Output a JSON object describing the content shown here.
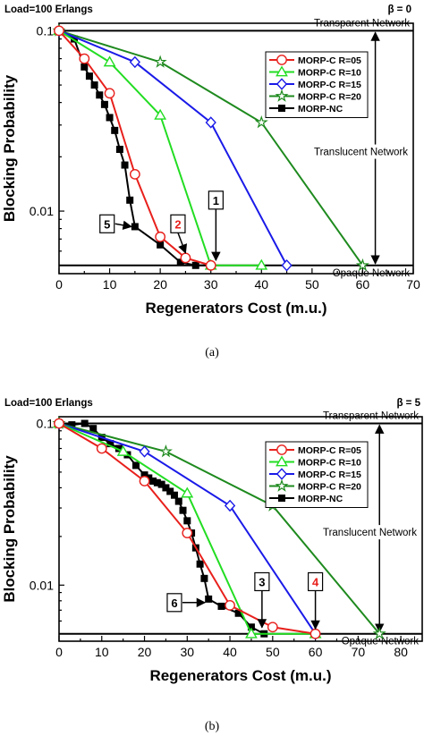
{
  "chart_data": [
    {
      "type": "line",
      "corner_left": "Load=100 Erlangs",
      "corner_right": "β = 0",
      "xlabel": "Regenerators Cost (m.u.)",
      "ylabel": "Blocking Probability",
      "xlim": [
        0,
        70
      ],
      "ylim": [
        0.0045,
        0.11
      ],
      "yscale": "log",
      "xticks": [
        0,
        10,
        20,
        30,
        40,
        50,
        60,
        70
      ],
      "xtick_labels": [
        "0",
        "10",
        "20",
        "30",
        "40",
        "50",
        "60",
        "70"
      ],
      "yticks": [
        0.01,
        0.1
      ],
      "ytick_labels": [
        "0.01",
        "0.1"
      ],
      "legend_position": "upper-right",
      "reference_lines": [
        {
          "y": 0.1,
          "label": "Transparent Network"
        },
        {
          "y": 0.005,
          "label": "Opaque Network"
        }
      ],
      "region_label": "Translucent Network",
      "region_arrow_x": 62.5,
      "series": [
        {
          "name": "MORP-C R=05",
          "color": "#e8201c",
          "marker": "circle",
          "x": [
            0,
            5,
            10,
            15,
            20,
            25,
            30
          ],
          "y": [
            0.1,
            0.07,
            0.045,
            0.016,
            0.0072,
            0.0055,
            0.005
          ]
        },
        {
          "name": "MORP-C R=10",
          "color": "#22dd22",
          "marker": "triangle",
          "x": [
            0,
            10,
            20,
            30,
            40
          ],
          "y": [
            0.1,
            0.067,
            0.034,
            0.005,
            0.005
          ]
        },
        {
          "name": "MORP-C R=15",
          "color": "#1a1ae8",
          "marker": "diamond",
          "x": [
            0,
            15,
            30,
            45
          ],
          "y": [
            0.1,
            0.067,
            0.031,
            0.005
          ]
        },
        {
          "name": "MORP-C R=20",
          "color": "#1e8a1e",
          "marker": "star",
          "x": [
            0,
            20,
            40,
            60
          ],
          "y": [
            0.1,
            0.067,
            0.031,
            0.005
          ]
        },
        {
          "name": "MORP-NC",
          "color": "#000000",
          "marker": "square",
          "x": [
            0,
            3,
            5,
            6,
            7,
            8,
            9,
            10,
            11,
            12,
            13,
            14,
            15,
            20,
            24,
            27,
            30
          ],
          "y": [
            0.1,
            0.09,
            0.063,
            0.056,
            0.05,
            0.044,
            0.039,
            0.033,
            0.028,
            0.022,
            0.018,
            0.0115,
            0.0082,
            0.0065,
            0.0052,
            0.005,
            0.005
          ]
        }
      ],
      "callouts": [
        {
          "label": "5",
          "color": "#000000",
          "box_at": [
            9.5,
            0.0085
          ],
          "points_to": [
            15,
            0.0082
          ]
        },
        {
          "label": "2",
          "color": "#e8201c",
          "box_at": [
            23.5,
            0.0085
          ],
          "points_to": [
            25,
            0.0056
          ]
        },
        {
          "label": "1",
          "color": "#000000",
          "box_at": [
            31,
            0.0115
          ],
          "points_to": [
            31,
            0.0051
          ]
        }
      ]
    },
    {
      "type": "line",
      "corner_left": "Load=100 Erlangs",
      "corner_right": "β = 5",
      "xlabel": "Regenerators Cost (m.u.)",
      "ylabel": "Blocking Probability",
      "xlim": [
        0,
        85
      ],
      "ylim": [
        0.0045,
        0.11
      ],
      "yscale": "log",
      "xticks": [
        0,
        10,
        20,
        30,
        40,
        50,
        60,
        70,
        80
      ],
      "xtick_labels": [
        "0",
        "10",
        "20",
        "30",
        "40",
        "50",
        "60",
        "70",
        "80"
      ],
      "yticks": [
        0.01,
        0.1
      ],
      "ytick_labels": [
        "0.01",
        "0.1"
      ],
      "legend_position": "upper-right",
      "reference_lines": [
        {
          "y": 0.1,
          "label": "Transparent Network"
        },
        {
          "y": 0.005,
          "label": "Opaque Network"
        }
      ],
      "region_label": "Translucent Network",
      "region_arrow_x": 75,
      "series": [
        {
          "name": "MORP-C R=05",
          "color": "#e8201c",
          "marker": "circle",
          "x": [
            0,
            10,
            20,
            30,
            40,
            50,
            60
          ],
          "y": [
            0.1,
            0.07,
            0.044,
            0.021,
            0.0075,
            0.0055,
            0.005
          ]
        },
        {
          "name": "MORP-C R=10",
          "color": "#22dd22",
          "marker": "triangle",
          "x": [
            0,
            15,
            30,
            45,
            60
          ],
          "y": [
            0.1,
            0.067,
            0.037,
            0.005,
            0.005
          ]
        },
        {
          "name": "MORP-C R=15",
          "color": "#1a1ae8",
          "marker": "diamond",
          "x": [
            0,
            20,
            40,
            60
          ],
          "y": [
            0.1,
            0.067,
            0.031,
            0.005
          ]
        },
        {
          "name": "MORP-C R=20",
          "color": "#1e8a1e",
          "marker": "star",
          "x": [
            0,
            25,
            50,
            75
          ],
          "y": [
            0.1,
            0.067,
            0.031,
            0.005
          ]
        },
        {
          "name": "MORP-NC",
          "color": "#000000",
          "marker": "square",
          "x": [
            0,
            3,
            6,
            8,
            10,
            12,
            14,
            16,
            18,
            20,
            21,
            22,
            23,
            24,
            25,
            26,
            27,
            28,
            29,
            30,
            31,
            32,
            33,
            34,
            35,
            38,
            42,
            45,
            48
          ],
          "y": [
            0.1,
            0.098,
            0.1,
            0.093,
            0.082,
            0.075,
            0.07,
            0.064,
            0.055,
            0.048,
            0.046,
            0.044,
            0.043,
            0.042,
            0.04,
            0.038,
            0.036,
            0.033,
            0.029,
            0.025,
            0.021,
            0.017,
            0.0135,
            0.011,
            0.0082,
            0.0074,
            0.0067,
            0.0055,
            0.005
          ]
        }
      ],
      "callouts": [
        {
          "label": "6",
          "color": "#000000",
          "box_at": [
            27,
            0.0078
          ],
          "points_to": [
            35,
            0.0078
          ]
        },
        {
          "label": "3",
          "color": "#000000",
          "box_at": [
            47.5,
            0.0105
          ],
          "points_to": [
            47.5,
            0.0052
          ]
        },
        {
          "label": "4",
          "color": "#e8201c",
          "box_at": [
            60,
            0.0105
          ],
          "points_to": [
            60,
            0.0051
          ]
        }
      ]
    }
  ],
  "captions": [
    "(a)",
    "(b)"
  ]
}
